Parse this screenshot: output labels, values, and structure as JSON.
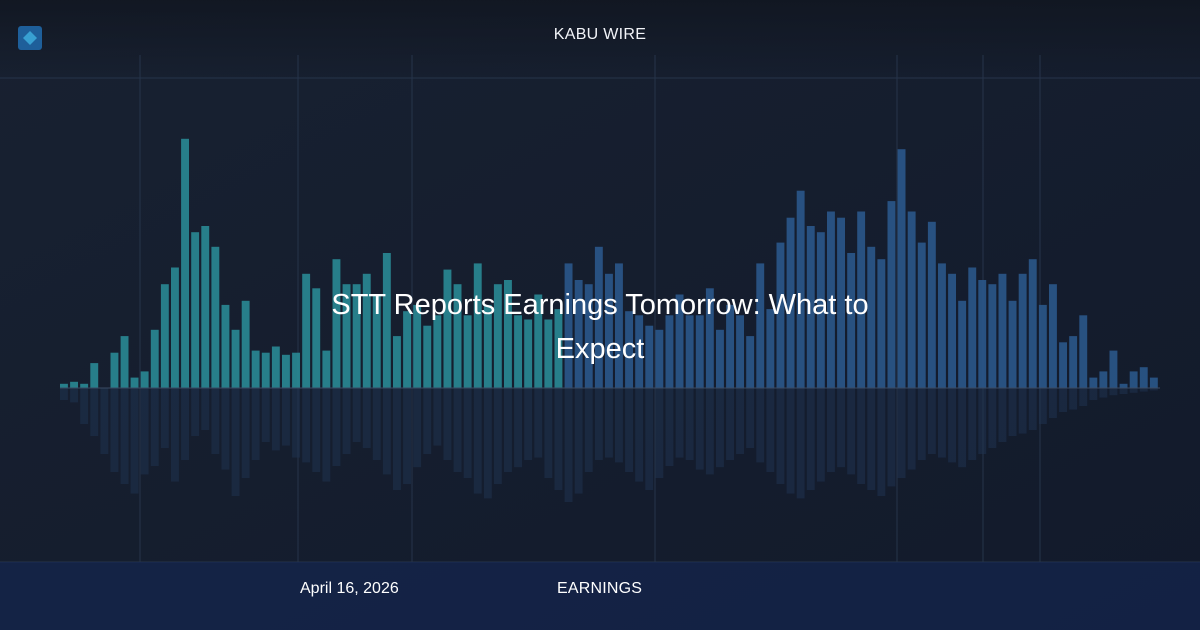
{
  "header": {
    "brand": "KABU WIRE"
  },
  "article": {
    "headline": "STT Reports Earnings Tomorrow: What to Expect",
    "date": "April 16, 2026",
    "category": "EARNINGS"
  },
  "colors": {
    "background": "#151c2a",
    "bar_teal": "#2a8f9a",
    "bar_blue": "#2b5a8f",
    "footer": "#14285a",
    "text": "#ffffff"
  },
  "chart_data": {
    "type": "bar",
    "title": "",
    "xlabel": "",
    "ylabel": "",
    "series": [
      {
        "values": [
          2,
          3,
          2,
          12,
          0,
          17,
          25,
          5,
          8,
          28,
          50,
          58,
          120,
          75,
          78,
          68,
          40,
          28,
          42,
          18,
          17,
          20,
          16,
          17,
          55,
          48,
          18,
          62,
          50,
          50,
          55,
          45,
          65,
          25,
          37,
          40,
          30,
          35,
          57,
          50,
          35,
          60,
          40,
          50,
          52,
          35,
          33,
          45,
          33,
          38,
          60,
          52,
          50,
          68,
          55,
          60,
          37,
          35,
          30,
          28,
          35,
          45,
          35,
          35,
          48,
          28,
          40,
          35,
          25,
          60,
          38,
          70,
          82,
          95,
          78,
          75,
          85,
          82,
          65,
          85,
          68,
          62,
          90,
          115,
          85,
          70,
          80,
          60,
          55,
          42,
          58,
          52,
          50,
          55,
          42,
          55,
          62,
          40,
          50,
          22,
          25,
          35,
          5,
          8,
          18,
          2,
          8,
          10,
          5
        ],
        "mirror": [
          10,
          12,
          30,
          40,
          55,
          70,
          80,
          88,
          72,
          65,
          50,
          78,
          60,
          40,
          35,
          55,
          68,
          90,
          75,
          60,
          45,
          52,
          48,
          58,
          62,
          70,
          78,
          65,
          55,
          45,
          50,
          60,
          72,
          85,
          80,
          66,
          55,
          48,
          60,
          70,
          75,
          88,
          92,
          80,
          70,
          66,
          60,
          58,
          75,
          85,
          95,
          88,
          70,
          60,
          58,
          62,
          70,
          78,
          85,
          75,
          65,
          58,
          60,
          68,
          72,
          66,
          60,
          55,
          50,
          62,
          70,
          80,
          88,
          92,
          85,
          78,
          70,
          66,
          72,
          80,
          85,
          90,
          82,
          75,
          68,
          60,
          55,
          58,
          62,
          66,
          60,
          55,
          50,
          45,
          40,
          38,
          35,
          30,
          25,
          20,
          18,
          15,
          10,
          8,
          6,
          5,
          4,
          3,
          2
        ]
      }
    ],
    "grid": true
  }
}
